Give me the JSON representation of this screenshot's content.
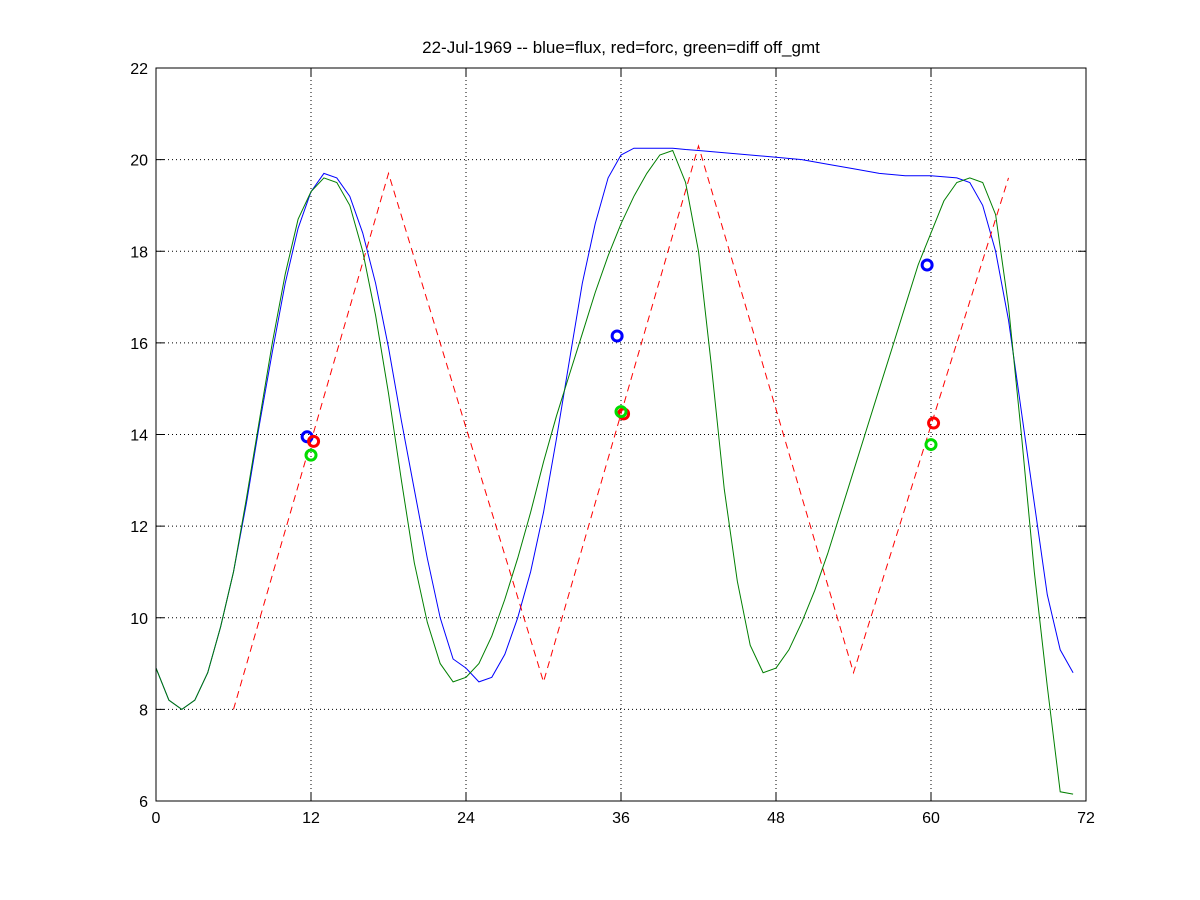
{
  "chart_data": {
    "type": "line",
    "title": "22-Jul-1969 -- blue=flux, red=forc, green=diff off_gmt",
    "xlabel": "",
    "ylabel": "",
    "xlim": [
      0,
      72
    ],
    "ylim": [
      6,
      22
    ],
    "xticks": [
      0,
      12,
      24,
      36,
      48,
      60,
      72
    ],
    "yticks": [
      6,
      8,
      10,
      12,
      14,
      16,
      18,
      20,
      22
    ],
    "grid": true,
    "series": [
      {
        "color": "#0000ff",
        "style": "solid",
        "x": [
          0,
          1,
          2,
          3,
          4,
          5,
          6,
          7,
          8,
          9,
          10,
          11,
          12,
          13,
          14,
          15,
          16,
          17,
          18,
          19,
          20,
          21,
          22,
          23,
          24,
          25,
          26,
          27,
          28,
          29,
          30,
          31,
          32,
          33,
          34,
          35,
          36,
          37,
          38,
          39,
          40,
          41,
          42,
          44,
          46,
          48,
          50,
          52,
          54,
          56,
          58,
          60,
          62,
          63,
          64,
          65,
          66,
          67,
          68,
          69,
          70,
          71
        ],
        "y": [
          8.9,
          8.2,
          8.0,
          8.2,
          8.8,
          9.8,
          11.0,
          12.5,
          14.2,
          15.8,
          17.3,
          18.5,
          19.3,
          19.7,
          19.6,
          19.2,
          18.4,
          17.3,
          15.9,
          14.3,
          12.8,
          11.3,
          10.0,
          9.1,
          8.9,
          8.6,
          8.7,
          9.2,
          10.0,
          11.0,
          12.3,
          13.9,
          15.6,
          17.3,
          18.6,
          19.6,
          20.1,
          20.25,
          20.25,
          20.25,
          20.25,
          20.22,
          20.2,
          20.15,
          20.1,
          20.05,
          20.0,
          19.9,
          19.8,
          19.7,
          19.65,
          19.65,
          19.6,
          19.5,
          19.0,
          18.0,
          16.5,
          14.5,
          12.5,
          10.5,
          9.3,
          8.8
        ]
      },
      {
        "color": "#ff0000",
        "style": "dashed",
        "x": [
          6,
          18,
          30,
          42,
          54,
          66
        ],
        "y": [
          8.0,
          19.7,
          8.6,
          20.3,
          8.8,
          19.6
        ]
      },
      {
        "color": "#007f00",
        "style": "solid",
        "x": [
          0,
          1,
          2,
          3,
          4,
          5,
          6,
          7,
          8,
          9,
          10,
          11,
          12,
          13,
          14,
          15,
          16,
          17,
          18,
          19,
          20,
          21,
          22,
          23,
          24,
          25,
          26,
          27,
          28,
          29,
          30,
          31,
          32,
          33,
          34,
          35,
          36,
          37,
          38,
          39,
          40,
          41,
          42,
          43,
          44,
          45,
          46,
          47,
          48,
          49,
          50,
          51,
          52,
          53,
          54,
          55,
          56,
          57,
          58,
          59,
          60,
          61,
          62,
          63,
          64,
          65,
          66,
          67,
          68,
          69,
          70,
          71
        ],
        "y": [
          8.9,
          8.2,
          8.0,
          8.2,
          8.8,
          9.8,
          11.0,
          12.6,
          14.3,
          16.0,
          17.5,
          18.7,
          19.3,
          19.6,
          19.5,
          19.0,
          18.0,
          16.6,
          14.9,
          13.0,
          11.2,
          9.9,
          9.0,
          8.6,
          8.7,
          9.0,
          9.6,
          10.4,
          11.3,
          12.3,
          13.4,
          14.4,
          15.3,
          16.2,
          17.1,
          17.9,
          18.6,
          19.2,
          19.7,
          20.1,
          20.2,
          19.5,
          18.0,
          15.5,
          12.8,
          10.8,
          9.4,
          8.8,
          8.9,
          9.3,
          9.9,
          10.6,
          11.4,
          12.3,
          13.2,
          14.1,
          15.0,
          15.9,
          16.8,
          17.7,
          18.4,
          19.1,
          19.5,
          19.6,
          19.5,
          18.8,
          16.8,
          14.0,
          11.0,
          8.5,
          6.2,
          6.15
        ]
      }
    ],
    "markers": [
      {
        "color": "#0000ff",
        "x": 11.7,
        "y": 13.95
      },
      {
        "color": "#ff0000",
        "x": 12.2,
        "y": 13.85
      },
      {
        "color": "#00dd00",
        "x": 12.0,
        "y": 13.55
      },
      {
        "color": "#0000ff",
        "x": 35.7,
        "y": 16.15
      },
      {
        "color": "#ff0000",
        "x": 36.2,
        "y": 14.45
      },
      {
        "color": "#00dd00",
        "x": 36.0,
        "y": 14.5
      },
      {
        "color": "#0000ff",
        "x": 59.7,
        "y": 17.7
      },
      {
        "color": "#ff0000",
        "x": 60.2,
        "y": 14.25
      },
      {
        "color": "#00dd00",
        "x": 60.0,
        "y": 13.78
      }
    ]
  }
}
